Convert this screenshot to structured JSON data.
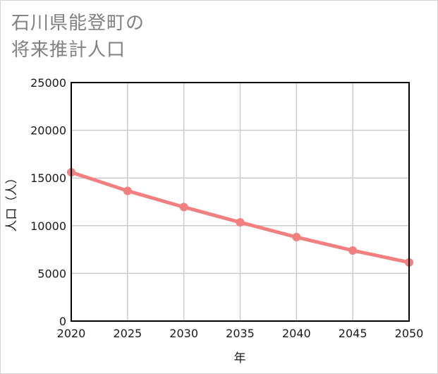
{
  "title": {
    "line1": "石川県能登町の",
    "line2": "将来推計人口"
  },
  "chart_data": {
    "type": "line",
    "title": "石川県能登町の将来推計人口",
    "xlabel": "年",
    "ylabel": "人口（人）",
    "categories": [
      "2020",
      "2025",
      "2030",
      "2035",
      "2040",
      "2045",
      "2050"
    ],
    "x": [
      2020,
      2025,
      2030,
      2035,
      2040,
      2045,
      2050
    ],
    "series": [
      {
        "name": "人口",
        "values": [
          15600,
          13650,
          11950,
          10350,
          8800,
          7400,
          6150
        ],
        "color": "#f28080"
      }
    ],
    "xlim": [
      2020,
      2050
    ],
    "ylim": [
      0,
      25000
    ],
    "yticks": [
      "0",
      "5000",
      "10000",
      "15000",
      "20000",
      "25000"
    ],
    "grid": true,
    "legend": "none"
  }
}
